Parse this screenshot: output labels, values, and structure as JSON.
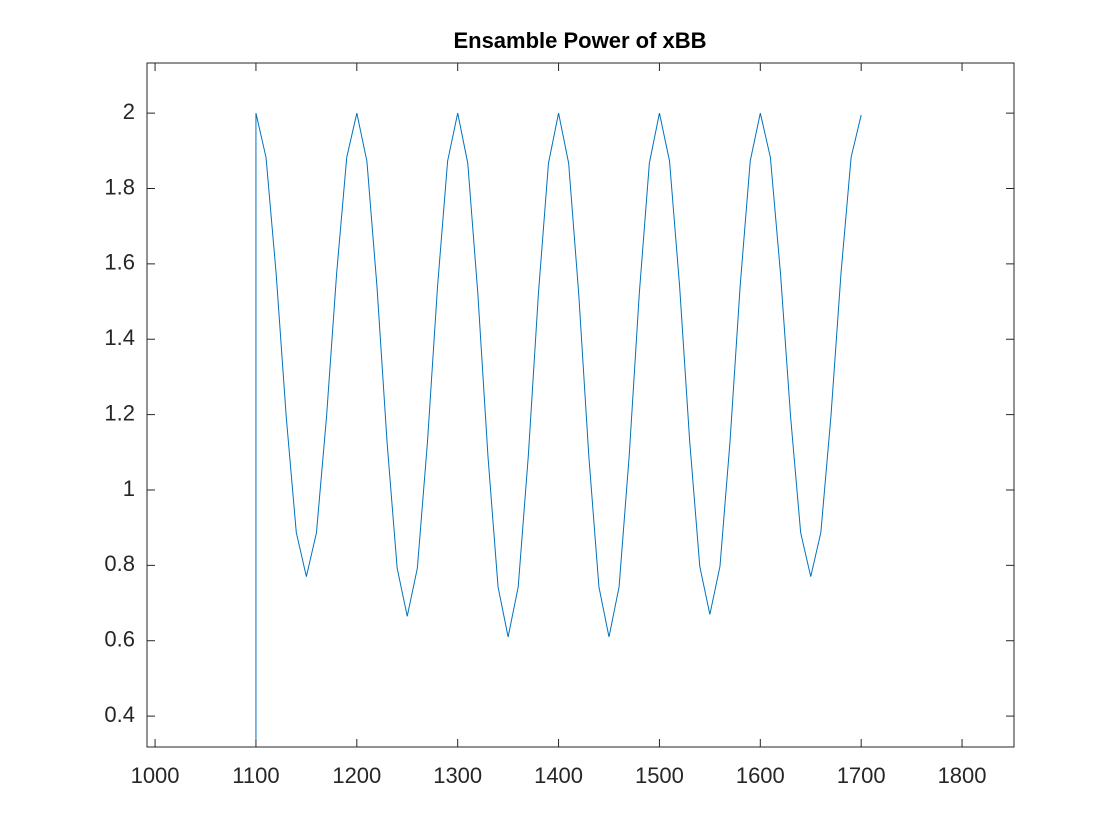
{
  "chart_data": {
    "type": "line",
    "title": "Ensamble Power of xBB",
    "x": [
      1100,
      1100,
      1110,
      1120,
      1130,
      1140,
      1150,
      1160,
      1170,
      1180,
      1190,
      1200,
      1210,
      1220,
      1230,
      1240,
      1250,
      1260,
      1270,
      1280,
      1290,
      1300,
      1310,
      1320,
      1330,
      1340,
      1350,
      1360,
      1370,
      1380,
      1390,
      1400,
      1410,
      1420,
      1430,
      1440,
      1450,
      1460,
      1470,
      1480,
      1490,
      1500,
      1510,
      1520,
      1530,
      1540,
      1550,
      1560,
      1570,
      1580,
      1590,
      1600,
      1610,
      1620,
      1630,
      1640,
      1650,
      1660,
      1670,
      1680,
      1690,
      1700
    ],
    "series": [
      {
        "color": "#0072BD",
        "values": [
          0.34,
          2,
          1.8825,
          1.575,
          1.195,
          0.887,
          0.77,
          0.887,
          1.195,
          1.575,
          1.8825,
          2,
          1.8725,
          1.539,
          1.126,
          0.7925,
          0.665,
          0.7925,
          1.126,
          1.539,
          1.8725,
          2,
          1.867,
          1.52,
          1.09,
          0.743,
          0.61,
          0.743,
          1.09,
          1.52,
          1.867,
          2,
          1.867,
          1.52,
          1.09,
          0.743,
          0.61,
          0.743,
          1.09,
          1.52,
          1.867,
          2,
          1.873,
          1.5405,
          1.1295,
          0.797,
          0.67,
          0.797,
          1.1295,
          1.5405,
          1.873,
          2,
          1.8825,
          1.575,
          1.195,
          0.887,
          0.77,
          0.887,
          1.195,
          1.575,
          1.8825,
          1.995
        ]
      }
    ],
    "xlim": [
      992,
      1851.5
    ],
    "ylim": [
      0.318,
      2.133
    ],
    "xticks": [
      1000,
      1100,
      1200,
      1300,
      1400,
      1500,
      1600,
      1700,
      1800
    ],
    "yticks": [
      0.4,
      0.6,
      0.8,
      1,
      1.2,
      1.4,
      1.6,
      1.8,
      2
    ],
    "grid": false
  }
}
